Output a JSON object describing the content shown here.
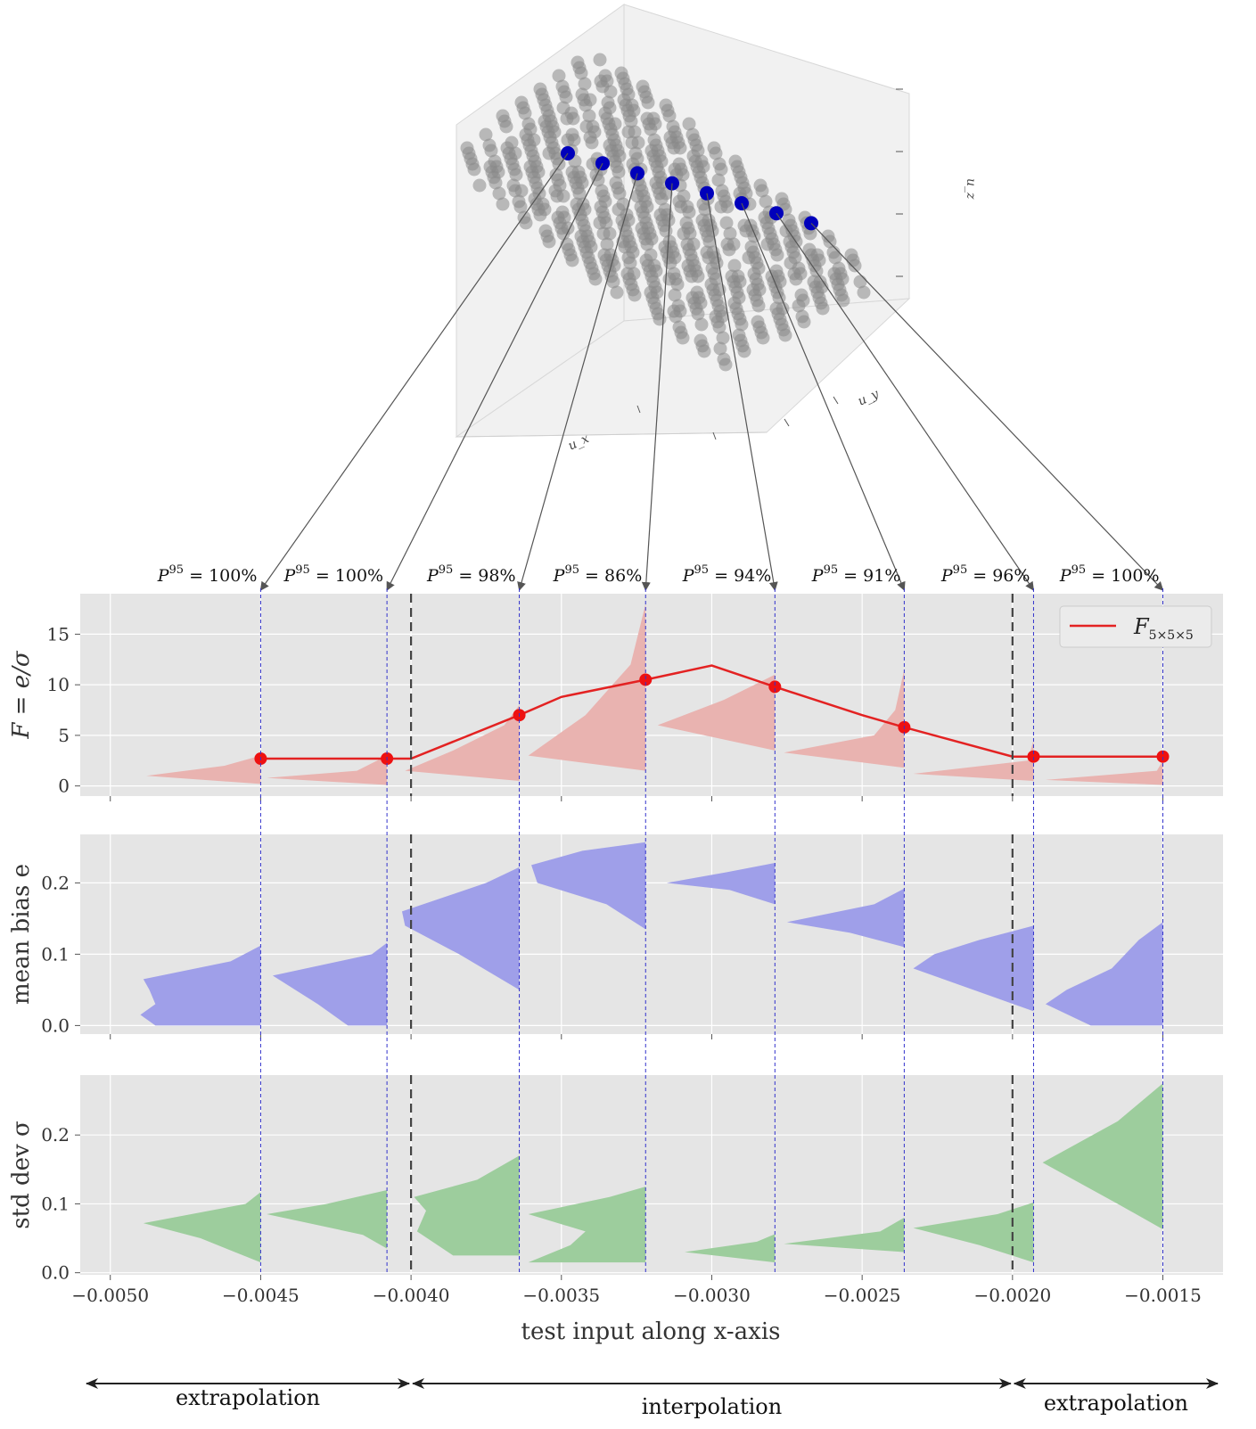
{
  "cube": {
    "axis_labels": {
      "ux": "u_x",
      "uy": "u_y",
      "uz": "u_z"
    },
    "point_color": "#888888",
    "selected_color": "#0000bb",
    "selected_count": 8
  },
  "annotations": [
    {
      "label": "P",
      "sup": "95",
      "text": " = 100%"
    },
    {
      "label": "P",
      "sup": "95",
      "text": " = 100%"
    },
    {
      "label": "P",
      "sup": "95",
      "text": " = 98%"
    },
    {
      "label": "P",
      "sup": "95",
      "text": " = 86%"
    },
    {
      "label": "P",
      "sup": "95",
      "text": " = 94%"
    },
    {
      "label": "P",
      "sup": "95",
      "text": " = 91%"
    },
    {
      "label": "P",
      "sup": "95",
      "text": " = 96%"
    },
    {
      "label": "P",
      "sup": "95",
      "text": " = 100%"
    }
  ],
  "regions": [
    {
      "label": "extrapolation",
      "x_range": [
        -0.0051,
        -0.004
      ]
    },
    {
      "label": "interpolation",
      "x_range": [
        -0.004,
        -0.002
      ]
    },
    {
      "label": "extrapolation",
      "x_range": [
        -0.002,
        -0.0013
      ]
    }
  ],
  "chart_data": [
    {
      "type": "line",
      "ylabel": "F = e/σ",
      "ylim": [
        -1,
        19
      ],
      "yticks": [
        "0",
        "5",
        "10",
        "15"
      ],
      "xlim": [
        -0.005,
        -0.0013
      ],
      "xticks": [
        -0.005,
        -0.0045,
        -0.004,
        -0.0035,
        -0.003,
        -0.0025,
        -0.002,
        -0.0015
      ],
      "legend": {
        "label": "F",
        "sub": "5×5×5",
        "position": "top-right"
      },
      "series": [
        {
          "name": "F5×5×5",
          "color": "#e32222",
          "x": [
            -0.0045,
            -0.00408,
            -0.004,
            -0.00364,
            -0.0035,
            -0.00322,
            -0.003,
            -0.00279,
            -0.0025,
            -0.00236,
            -0.002,
            -0.00193,
            -0.0015
          ],
          "y": [
            2.7,
            2.7,
            2.7,
            7.0,
            8.8,
            10.5,
            11.9,
            9.8,
            7.0,
            5.8,
            2.9,
            2.9,
            2.9
          ]
        }
      ],
      "markers_x": [
        -0.0045,
        -0.00408,
        -0.00364,
        -0.00322,
        -0.00279,
        -0.00236,
        -0.00193,
        -0.0015
      ],
      "markers_y": [
        2.7,
        2.7,
        7.0,
        10.5,
        9.8,
        5.8,
        2.9,
        2.9
      ],
      "distribution_color": "#e9b3b0",
      "distributions": [
        {
          "x_base": -0.0045,
          "y": [
            0.2,
            1.0,
            2.0,
            3.0
          ],
          "w": [
            0,
            0.00038,
            0.00012,
            0
          ]
        },
        {
          "x_base": -0.00408,
          "y": [
            0.1,
            0.8,
            1.5,
            3.0
          ],
          "w": [
            0,
            0.0004,
            0.0001,
            0
          ]
        },
        {
          "x_base": -0.00364,
          "y": [
            0.5,
            1.5,
            3.5,
            6.0,
            8.0
          ],
          "w": [
            0,
            0.00038,
            0.00022,
            5e-05,
            0
          ]
        },
        {
          "x_base": -0.00322,
          "y": [
            1.5,
            3.0,
            7.0,
            12.0,
            18.0
          ],
          "w": [
            0,
            0.00039,
            0.0002,
            5e-05,
            0
          ]
        },
        {
          "x_base": -0.00279,
          "y": [
            3.5,
            6.0,
            8.5,
            11.0
          ],
          "w": [
            0,
            0.00039,
            0.00017,
            0
          ]
        },
        {
          "x_base": -0.00236,
          "y": [
            1.8,
            3.3,
            5.0,
            7.5,
            11.5
          ],
          "w": [
            0,
            0.0004,
            0.0001,
            3e-05,
            0
          ]
        },
        {
          "x_base": -0.00193,
          "y": [
            0.5,
            1.2,
            2.5,
            4.5
          ],
          "w": [
            0,
            0.0004,
            2e-05,
            0
          ]
        },
        {
          "x_base": -0.0015,
          "y": [
            0.1,
            0.6,
            1.5,
            2.5
          ],
          "w": [
            0,
            0.00039,
            2e-05,
            0
          ]
        }
      ]
    },
    {
      "type": "area",
      "ylabel": "mean bias e",
      "ylim": [
        -0.012,
        0.268
      ],
      "yticks": [
        "0.0",
        "0.1",
        "0.2"
      ],
      "xlim": [
        -0.005,
        -0.0013
      ],
      "distribution_color": "#9f9fe9",
      "distributions": [
        {
          "x_base": -0.0045,
          "y": [
            0.0,
            0.015,
            0.03,
            0.05,
            0.065,
            0.09,
            0.112
          ],
          "w": [
            0.00035,
            0.0004,
            0.00035,
            0.00037,
            0.00039,
            0.0001,
            0
          ]
        },
        {
          "x_base": -0.00408,
          "y": [
            0.0,
            0.03,
            0.07,
            0.1,
            0.116
          ],
          "w": [
            0.00013,
            0.00023,
            0.00038,
            5e-05,
            0
          ]
        },
        {
          "x_base": -0.00364,
          "y": [
            0.05,
            0.1,
            0.14,
            0.16,
            0.2,
            0.222
          ],
          "w": [
            0,
            0.0002,
            0.00038,
            0.00039,
            0.00011,
            0
          ]
        },
        {
          "x_base": -0.00322,
          "y": [
            0.135,
            0.17,
            0.2,
            0.225,
            0.245,
            0.257
          ],
          "w": [
            0,
            0.00013,
            0.00036,
            0.00038,
            0.00021,
            0
          ]
        },
        {
          "x_base": -0.00279,
          "y": [
            0.17,
            0.19,
            0.2,
            0.215,
            0.228
          ],
          "w": [
            0,
            0.00015,
            0.00036,
            0.00016,
            0
          ]
        },
        {
          "x_base": -0.00236,
          "y": [
            0.11,
            0.13,
            0.145,
            0.17,
            0.192
          ],
          "w": [
            0,
            0.00018,
            0.00039,
            0.0001,
            0
          ]
        },
        {
          "x_base": -0.00193,
          "y": [
            0.02,
            0.05,
            0.08,
            0.1,
            0.12,
            0.14
          ],
          "w": [
            0,
            0.0002,
            0.0004,
            0.00033,
            0.00018,
            0
          ]
        },
        {
          "x_base": -0.0015,
          "y": [
            0.0,
            0.03,
            0.05,
            0.08,
            0.12,
            0.145
          ],
          "w": [
            0.00024,
            0.00039,
            0.00032,
            0.00017,
            8e-05,
            0
          ]
        }
      ]
    },
    {
      "type": "area",
      "ylabel": "std dev σ",
      "xlabel": "test input along x-axis",
      "ylim": [
        -0.003,
        0.287
      ],
      "yticks": [
        "0.0",
        "0.1",
        "0.2"
      ],
      "xlim": [
        -0.005,
        -0.0013
      ],
      "xtick_labels": [
        "−0.0050",
        "−0.0045",
        "−0.0040",
        "−0.0035",
        "−0.0030",
        "−0.0025",
        "−0.0020",
        "−0.0015"
      ],
      "distribution_color": "#9dcd9d",
      "distributions": [
        {
          "x_base": -0.0045,
          "y": [
            0.015,
            0.05,
            0.072,
            0.1,
            0.117
          ],
          "w": [
            0,
            0.0002,
            0.00039,
            5e-05,
            0
          ]
        },
        {
          "x_base": -0.00408,
          "y": [
            0.035,
            0.055,
            0.085,
            0.1,
            0.12
          ],
          "w": [
            0,
            8e-05,
            0.0004,
            0.0002,
            0
          ]
        },
        {
          "x_base": -0.00364,
          "y": [
            0.025,
            0.06,
            0.09,
            0.11,
            0.135,
            0.17
          ],
          "w": [
            0.00022,
            0.00034,
            0.00031,
            0.00035,
            0.00014,
            0
          ]
        },
        {
          "x_base": -0.00322,
          "y": [
            0.015,
            0.04,
            0.06,
            0.085,
            0.11,
            0.125
          ],
          "w": [
            0.00039,
            0.00025,
            0.0002,
            0.00039,
            0.00012,
            0
          ]
        },
        {
          "x_base": -0.00279,
          "y": [
            0.015,
            0.03,
            0.045,
            0.056
          ],
          "w": [
            0,
            0.0003,
            6e-05,
            0
          ]
        },
        {
          "x_base": -0.00236,
          "y": [
            0.03,
            0.042,
            0.06,
            0.08
          ],
          "w": [
            0,
            0.0004,
            8e-05,
            0
          ]
        },
        {
          "x_base": -0.00193,
          "y": [
            0.015,
            0.04,
            0.065,
            0.085,
            0.102
          ],
          "w": [
            0,
            0.00018,
            0.0004,
            0.00012,
            0
          ]
        },
        {
          "x_base": -0.0015,
          "y": [
            0.063,
            0.1,
            0.16,
            0.22,
            0.275
          ],
          "w": [
            0,
            0.00015,
            0.0004,
            0.00015,
            0
          ]
        }
      ]
    }
  ]
}
